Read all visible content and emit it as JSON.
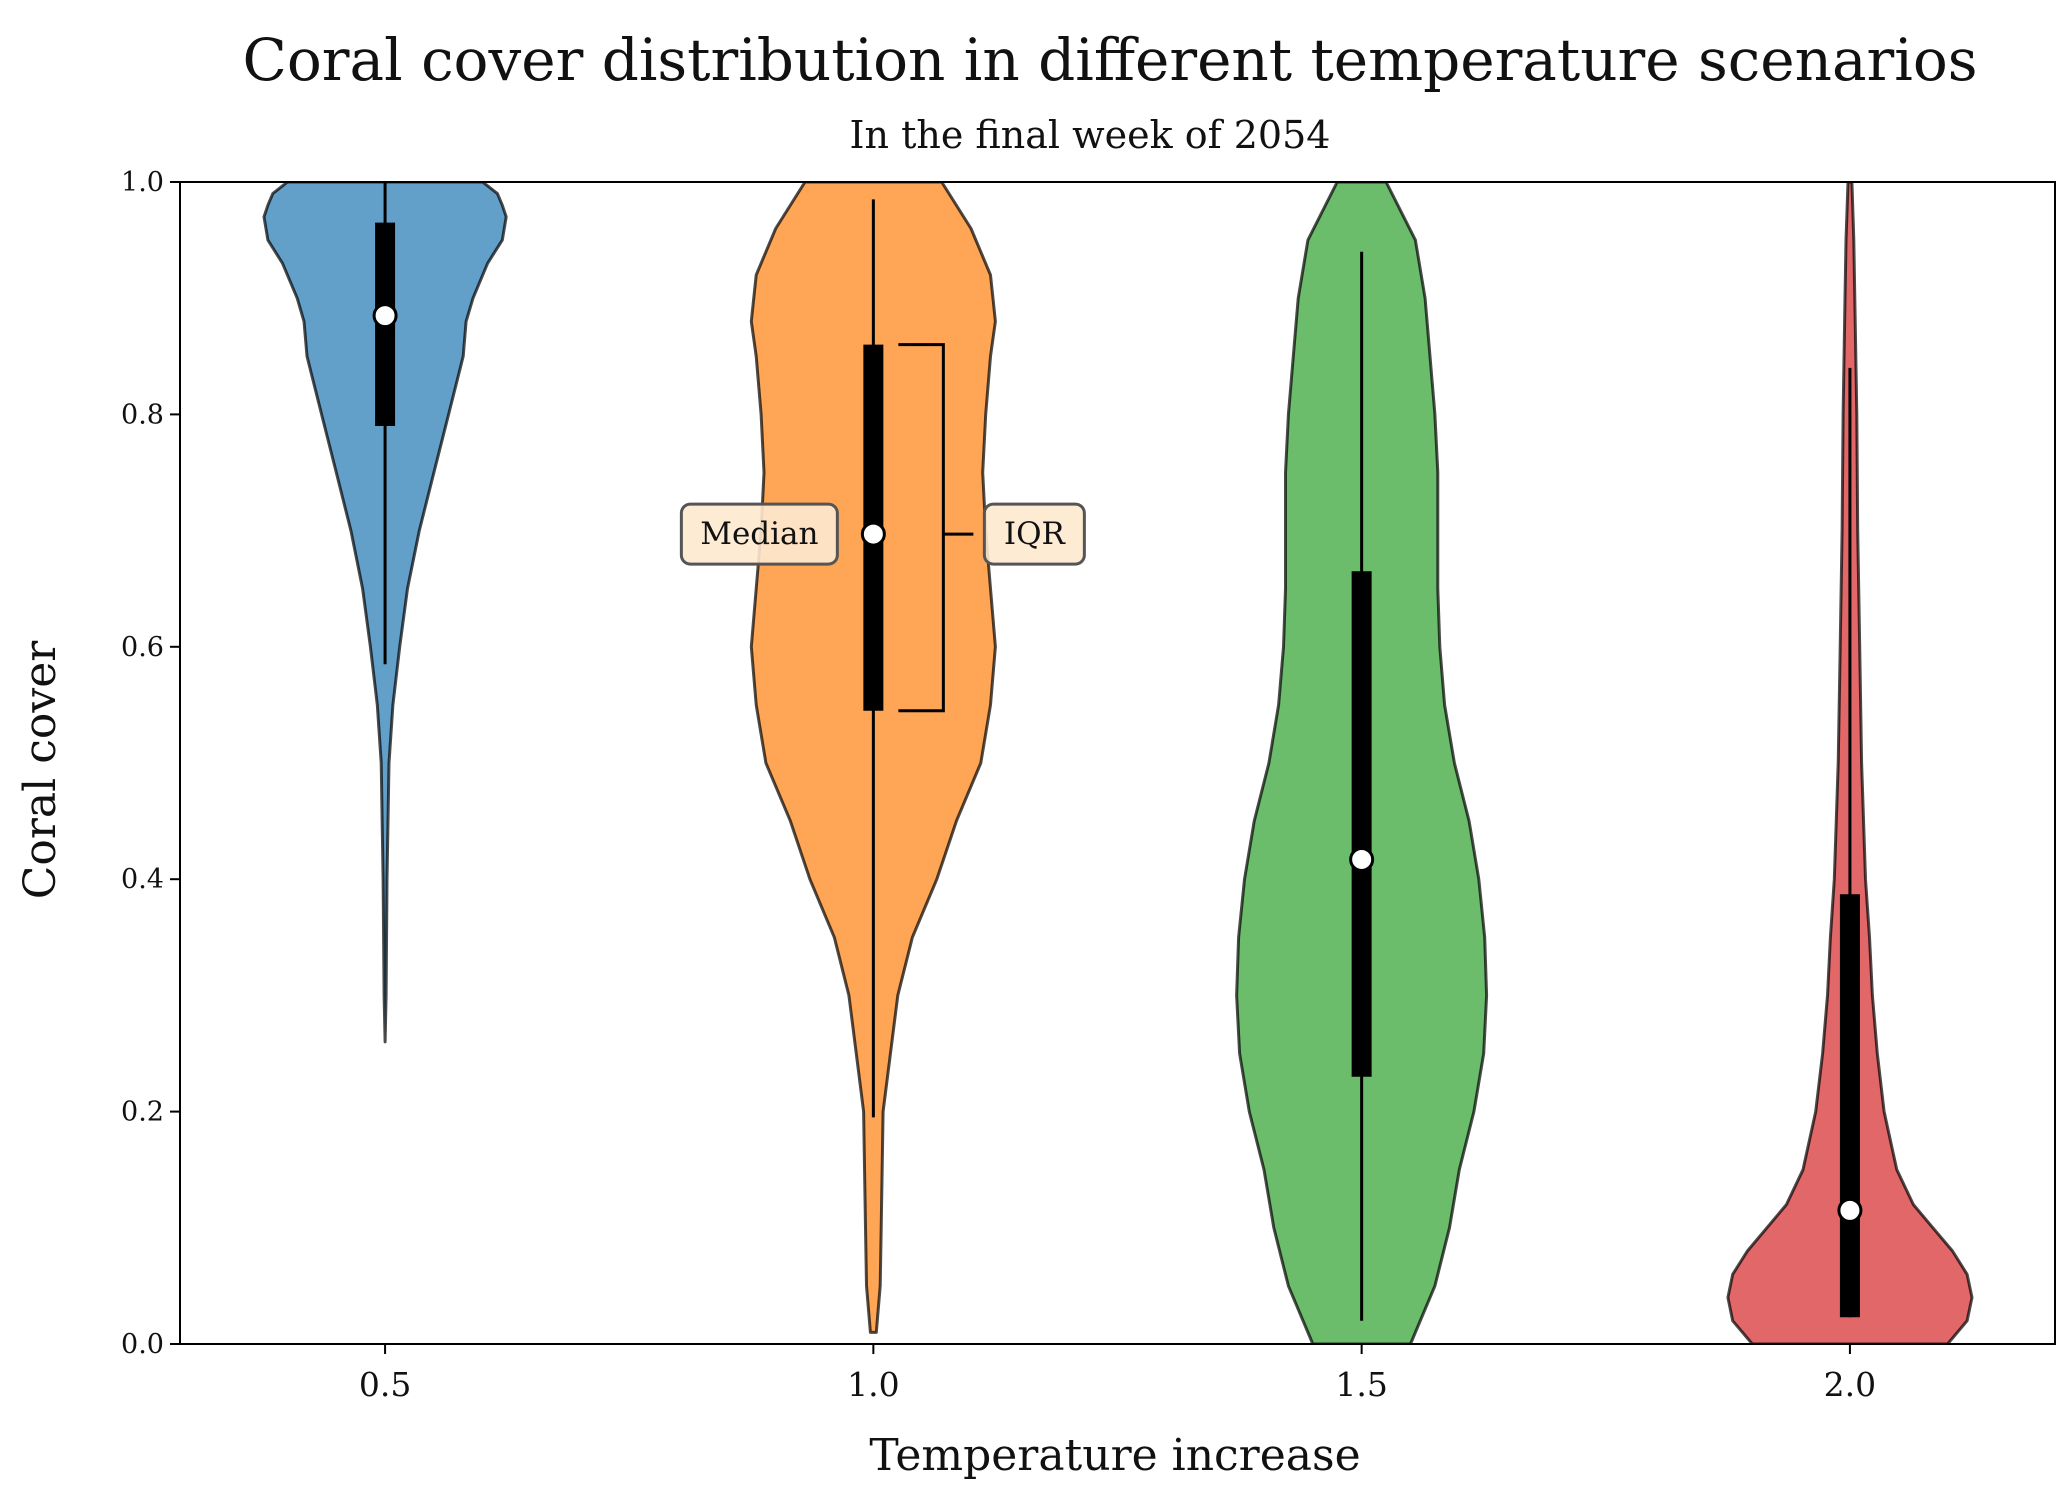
{
  "chart_data": {
    "type": "violin",
    "title": "Coral cover distribution in different temperature scenarios",
    "subtitle": "In the final week of 2054",
    "xlabel": "Temperature increase",
    "ylabel": "Coral cover",
    "ylim": [
      0.0,
      1.0
    ],
    "xlim": [
      0.29,
      2.21
    ],
    "xticks": [
      "0.5",
      "1.0",
      "1.5",
      "2.0"
    ],
    "yticks": [
      "0.0",
      "0.2",
      "0.4",
      "0.6",
      "0.8",
      "1.0"
    ],
    "grid": false,
    "violins": [
      {
        "x": 0.5,
        "color": "#1f77b4",
        "median": 0.885,
        "q1": 0.79,
        "q3": 0.965,
        "whisker_low": 0.585,
        "whisker_high": 1.0,
        "min": 0.26,
        "max": 1.0,
        "density": [
          [
            0.26,
            0.0
          ],
          [
            0.3,
            0.001
          ],
          [
            0.4,
            0.002
          ],
          [
            0.5,
            0.004
          ],
          [
            0.55,
            0.008
          ],
          [
            0.6,
            0.015
          ],
          [
            0.65,
            0.023
          ],
          [
            0.7,
            0.035
          ],
          [
            0.75,
            0.05
          ],
          [
            0.8,
            0.065
          ],
          [
            0.85,
            0.08
          ],
          [
            0.88,
            0.083
          ],
          [
            0.9,
            0.09
          ],
          [
            0.93,
            0.105
          ],
          [
            0.95,
            0.12
          ],
          [
            0.97,
            0.124
          ],
          [
            0.98,
            0.12
          ],
          [
            0.99,
            0.115
          ],
          [
            1.0,
            0.1
          ]
        ]
      },
      {
        "x": 1.0,
        "color": "#ff7f0e",
        "median": 0.697,
        "q1": 0.545,
        "q3": 0.86,
        "whisker_low": 0.195,
        "whisker_high": 0.985,
        "min": 0.01,
        "max": 1.0,
        "density": [
          [
            0.01,
            0.003
          ],
          [
            0.05,
            0.007
          ],
          [
            0.1,
            0.008
          ],
          [
            0.2,
            0.01
          ],
          [
            0.3,
            0.025
          ],
          [
            0.35,
            0.04
          ],
          [
            0.4,
            0.065
          ],
          [
            0.45,
            0.085
          ],
          [
            0.5,
            0.11
          ],
          [
            0.55,
            0.12
          ],
          [
            0.6,
            0.125
          ],
          [
            0.65,
            0.12
          ],
          [
            0.7,
            0.115
          ],
          [
            0.75,
            0.112
          ],
          [
            0.8,
            0.115
          ],
          [
            0.85,
            0.12
          ],
          [
            0.88,
            0.125
          ],
          [
            0.92,
            0.12
          ],
          [
            0.96,
            0.1
          ],
          [
            1.0,
            0.07
          ]
        ]
      },
      {
        "x": 1.5,
        "color": "#2ca02c",
        "median": 0.417,
        "q1": 0.23,
        "q3": 0.665,
        "whisker_low": 0.02,
        "whisker_high": 0.94,
        "min": 0.0,
        "max": 1.0,
        "density": [
          [
            0.0,
            0.05
          ],
          [
            0.05,
            0.075
          ],
          [
            0.1,
            0.09
          ],
          [
            0.15,
            0.1
          ],
          [
            0.2,
            0.115
          ],
          [
            0.25,
            0.125
          ],
          [
            0.3,
            0.128
          ],
          [
            0.35,
            0.126
          ],
          [
            0.4,
            0.12
          ],
          [
            0.45,
            0.11
          ],
          [
            0.5,
            0.095
          ],
          [
            0.55,
            0.085
          ],
          [
            0.6,
            0.08
          ],
          [
            0.65,
            0.078
          ],
          [
            0.7,
            0.078
          ],
          [
            0.75,
            0.078
          ],
          [
            0.8,
            0.075
          ],
          [
            0.85,
            0.07
          ],
          [
            0.9,
            0.065
          ],
          [
            0.95,
            0.055
          ],
          [
            1.0,
            0.025
          ]
        ]
      },
      {
        "x": 2.0,
        "color": "#d62728",
        "median": 0.115,
        "q1": 0.023,
        "q3": 0.387,
        "whisker_low": 0.023,
        "whisker_high": 0.84,
        "min": 0.0,
        "max": 1.0,
        "density": [
          [
            0.0,
            0.1
          ],
          [
            0.02,
            0.12
          ],
          [
            0.04,
            0.125
          ],
          [
            0.06,
            0.12
          ],
          [
            0.08,
            0.105
          ],
          [
            0.1,
            0.085
          ],
          [
            0.12,
            0.065
          ],
          [
            0.15,
            0.048
          ],
          [
            0.2,
            0.035
          ],
          [
            0.25,
            0.028
          ],
          [
            0.3,
            0.023
          ],
          [
            0.35,
            0.02
          ],
          [
            0.4,
            0.016
          ],
          [
            0.5,
            0.012
          ],
          [
            0.6,
            0.01
          ],
          [
            0.7,
            0.008
          ],
          [
            0.8,
            0.007
          ],
          [
            0.9,
            0.005
          ],
          [
            0.95,
            0.004
          ],
          [
            1.0,
            0.002
          ]
        ]
      }
    ],
    "annotations": [
      {
        "text": "Median",
        "target": "median of 1.0"
      },
      {
        "text": "IQR",
        "target": "interquartile range of 1.0"
      }
    ]
  }
}
